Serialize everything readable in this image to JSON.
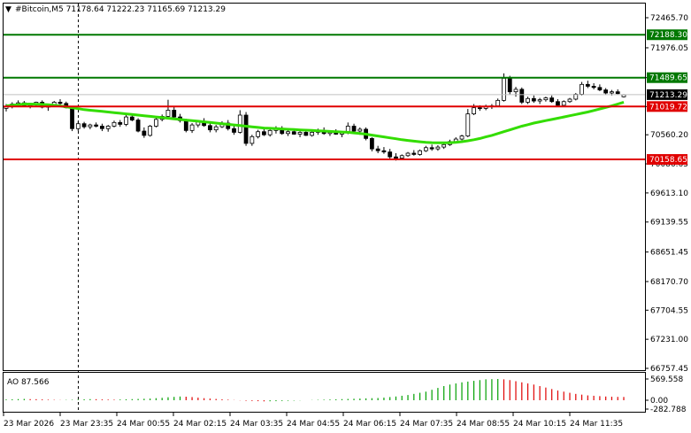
{
  "header": {
    "menu_arrow": "▼",
    "title": "#Bitcoin,M5  71178.64 71222.23 71165.69 71213.29"
  },
  "price_axis": {
    "ticks": [
      "72465.70",
      "71976.05",
      "71489.65",
      "71019.72",
      "70560.20",
      "70086.65",
      "69613.10",
      "69139.55",
      "68651.45",
      "68170.70",
      "67704.55",
      "67231.00",
      "66757.45"
    ]
  },
  "levels": [
    {
      "label": "72188.30",
      "value": 72188.3,
      "color": "#007800",
      "role": "target-green-top"
    },
    {
      "label": "71489.65",
      "value": 71489.65,
      "color": "#007800",
      "role": "target-green"
    },
    {
      "label": "71019.72",
      "value": 71019.72,
      "color": "#e00000",
      "role": "level-red"
    },
    {
      "label": "70158.65",
      "value": 70158.65,
      "color": "#e00000",
      "role": "level-red-bottom"
    }
  ],
  "current_price": {
    "label": "71213.29",
    "value": 71213.29,
    "color": "#000000"
  },
  "oscillator": {
    "title": "AO 87.566",
    "ticks": [
      "569.558",
      "0.00",
      "-282.788"
    ],
    "values": [
      20,
      25,
      30,
      35,
      30,
      28,
      22,
      15,
      10,
      5,
      8,
      12,
      18,
      25,
      30,
      28,
      22,
      18,
      15,
      20,
      25,
      30,
      35,
      40,
      45,
      55,
      65,
      80,
      90,
      100,
      95,
      85,
      70,
      55,
      45,
      35,
      25,
      15,
      5,
      -5,
      -15,
      -20,
      -25,
      -30,
      -28,
      -25,
      -20,
      -15,
      -10,
      -5,
      0,
      5,
      10,
      15,
      20,
      25,
      30,
      35,
      40,
      45,
      50,
      55,
      60,
      70,
      85,
      100,
      120,
      140,
      170,
      200,
      230,
      280,
      330,
      380,
      420,
      450,
      480,
      500,
      520,
      540,
      560,
      565,
      569,
      560,
      540,
      510,
      480,
      450,
      420,
      380,
      340,
      300,
      260,
      230,
      200,
      170,
      150,
      130,
      120,
      110,
      100,
      95,
      90,
      88
    ]
  },
  "time_axis": {
    "labels": [
      "23 Mar 2026",
      "23 Mar 23:35",
      "24 Mar 00:55",
      "24 Mar 02:15",
      "24 Mar 03:35",
      "24 Mar 04:55",
      "24 Mar 06:15",
      "24 Mar 07:35",
      "24 Mar 08:55",
      "24 Mar 10:15",
      "24 Mar 11:35"
    ]
  },
  "chart_data": {
    "type": "candlestick",
    "symbol": "#Bitcoin",
    "timeframe": "M5",
    "ylim": [
      66757.45,
      72700
    ],
    "moving_average_color": "#33dd00",
    "candles": [
      [
        70990,
        71060,
        70940,
        71020
      ],
      [
        71020,
        71090,
        70990,
        71060
      ],
      [
        71060,
        71120,
        71030,
        71080
      ],
      [
        71080,
        71110,
        71010,
        71030
      ],
      [
        71030,
        71070,
        70990,
        71050
      ],
      [
        71050,
        71100,
        71020,
        71090
      ],
      [
        71090,
        71120,
        70990,
        71010
      ],
      [
        71010,
        71060,
        70950,
        71040
      ],
      [
        71040,
        71110,
        71010,
        71090
      ],
      [
        71090,
        71140,
        71050,
        71070
      ],
      [
        71070,
        71100,
        70990,
        71000
      ],
      [
        71000,
        71010,
        70620,
        70660
      ],
      [
        70660,
        70780,
        70620,
        70740
      ],
      [
        70740,
        70770,
        70660,
        70690
      ],
      [
        70690,
        70740,
        70650,
        70720
      ],
      [
        70720,
        70760,
        70680,
        70700
      ],
      [
        70700,
        70740,
        70620,
        70660
      ],
      [
        70660,
        70720,
        70610,
        70700
      ],
      [
        70700,
        70790,
        70680,
        70760
      ],
      [
        70760,
        70800,
        70690,
        70730
      ],
      [
        70730,
        70880,
        70700,
        70850
      ],
      [
        70850,
        70900,
        70780,
        70800
      ],
      [
        70800,
        70830,
        70600,
        70620
      ],
      [
        70620,
        70680,
        70510,
        70550
      ],
      [
        70550,
        70720,
        70530,
        70700
      ],
      [
        70700,
        70840,
        70680,
        70810
      ],
      [
        70810,
        70890,
        70780,
        70860
      ],
      [
        70860,
        71130,
        70840,
        70960
      ],
      [
        70960,
        71010,
        70820,
        70850
      ],
      [
        70850,
        70900,
        70760,
        70790
      ],
      [
        70790,
        70820,
        70600,
        70630
      ],
      [
        70630,
        70750,
        70590,
        70720
      ],
      [
        70720,
        70800,
        70680,
        70770
      ],
      [
        70770,
        70830,
        70690,
        70710
      ],
      [
        70710,
        70760,
        70600,
        70640
      ],
      [
        70640,
        70720,
        70600,
        70690
      ],
      [
        70690,
        70780,
        70670,
        70750
      ],
      [
        70750,
        70800,
        70630,
        70660
      ],
      [
        70660,
        70720,
        70560,
        70600
      ],
      [
        70600,
        70960,
        70580,
        70880
      ],
      [
        70880,
        70930,
        70380,
        70420
      ],
      [
        70420,
        70560,
        70380,
        70530
      ],
      [
        70530,
        70640,
        70500,
        70610
      ],
      [
        70610,
        70660,
        70540,
        70560
      ],
      [
        70560,
        70650,
        70530,
        70630
      ],
      [
        70630,
        70700,
        70580,
        70660
      ],
      [
        70660,
        70700,
        70560,
        70580
      ],
      [
        70580,
        70630,
        70540,
        70610
      ],
      [
        70610,
        70660,
        70560,
        70570
      ],
      [
        70570,
        70620,
        70520,
        70600
      ],
      [
        70600,
        70640,
        70540,
        70550
      ],
      [
        70550,
        70620,
        70530,
        70600
      ],
      [
        70600,
        70660,
        70560,
        70630
      ],
      [
        70630,
        70680,
        70560,
        70580
      ],
      [
        70580,
        70630,
        70540,
        70600
      ],
      [
        70600,
        70650,
        70560,
        70570
      ],
      [
        70570,
        70620,
        70520,
        70590
      ],
      [
        70590,
        70760,
        70570,
        70700
      ],
      [
        70700,
        70740,
        70600,
        70620
      ],
      [
        70620,
        70680,
        70560,
        70650
      ],
      [
        70650,
        70680,
        70470,
        70500
      ],
      [
        70500,
        70520,
        70290,
        70330
      ],
      [
        70330,
        70380,
        70260,
        70300
      ],
      [
        70300,
        70360,
        70250,
        70280
      ],
      [
        70280,
        70330,
        70150,
        70200
      ],
      [
        70200,
        70260,
        70140,
        70180
      ],
      [
        70180,
        70240,
        70150,
        70220
      ],
      [
        70220,
        70280,
        70200,
        70260
      ],
      [
        70260,
        70310,
        70220,
        70240
      ],
      [
        70240,
        70320,
        70220,
        70300
      ],
      [
        70300,
        70380,
        70280,
        70350
      ],
      [
        70350,
        70400,
        70300,
        70330
      ],
      [
        70330,
        70390,
        70300,
        70360
      ],
      [
        70360,
        70420,
        70330,
        70400
      ],
      [
        70400,
        70480,
        70380,
        70450
      ],
      [
        70450,
        70520,
        70420,
        70490
      ],
      [
        70490,
        70560,
        70470,
        70540
      ],
      [
        70540,
        70980,
        70520,
        70900
      ],
      [
        70900,
        71060,
        70880,
        71000
      ],
      [
        71000,
        71040,
        70950,
        70990
      ],
      [
        70990,
        71050,
        70960,
        71020
      ],
      [
        71020,
        71060,
        70980,
        71030
      ],
      [
        71030,
        71150,
        71010,
        71120
      ],
      [
        71120,
        71560,
        71100,
        71480
      ],
      [
        71480,
        71520,
        71220,
        71260
      ],
      [
        71260,
        71340,
        71180,
        71300
      ],
      [
        71300,
        71330,
        71060,
        71090
      ],
      [
        71090,
        71180,
        71060,
        71150
      ],
      [
        71150,
        71200,
        71080,
        71110
      ],
      [
        71110,
        71160,
        71060,
        71130
      ],
      [
        71130,
        71180,
        71100,
        71160
      ],
      [
        71160,
        71200,
        71080,
        71100
      ],
      [
        71100,
        71140,
        71020,
        71040
      ],
      [
        71040,
        71120,
        71010,
        71100
      ],
      [
        71100,
        71160,
        71080,
        71140
      ],
      [
        71140,
        71240,
        71120,
        71220
      ],
      [
        71220,
        71420,
        71200,
        71380
      ],
      [
        71380,
        71440,
        71320,
        71350
      ],
      [
        71350,
        71400,
        71300,
        71330
      ],
      [
        71330,
        71380,
        71270,
        71290
      ],
      [
        71290,
        71320,
        71210,
        71240
      ],
      [
        71240,
        71290,
        71200,
        71260
      ],
      [
        71260,
        71300,
        71220,
        71230
      ],
      [
        71178.64,
        71222.23,
        71165.69,
        71213.29
      ]
    ],
    "moving_average": [
      71030,
      71040,
      71050,
      71060,
      71060,
      71058,
      71055,
      71050,
      71040,
      71030,
      71015,
      71000,
      70985,
      70970,
      70960,
      70950,
      70940,
      70930,
      70920,
      70910,
      70900,
      70890,
      70880,
      70870,
      70860,
      70850,
      70840,
      70830,
      70820,
      70810,
      70800,
      70790,
      70780,
      70770,
      70760,
      70750,
      70740,
      70730,
      70720,
      70710,
      70700,
      70690,
      70680,
      70670,
      70665,
      70660,
      70655,
      70650,
      70645,
      70640,
      70635,
      70630,
      70625,
      70620,
      70615,
      70610,
      70605,
      70600,
      70590,
      70580,
      70570,
      70555,
      70540,
      70525,
      70510,
      70495,
      70480,
      70468,
      70456,
      70446,
      70438,
      70432,
      70430,
      70430,
      70432,
      70438,
      70448,
      70462,
      70480,
      70500,
      70525,
      70550,
      70580,
      70610,
      70640,
      70670,
      70700,
      70725,
      70750,
      70770,
      70790,
      70810,
      70830,
      70850,
      70870,
      70890,
      70910,
      70930,
      70955,
      70980,
      71005,
      71030,
      71060,
      71090
    ]
  }
}
